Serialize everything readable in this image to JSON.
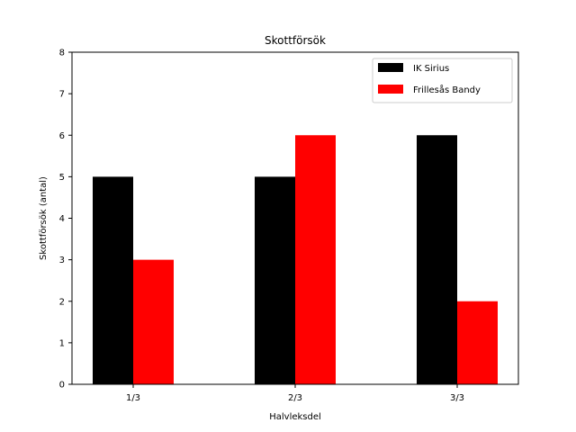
{
  "chart_data": {
    "type": "bar",
    "title": "Skottförsök",
    "xlabel": "Halvleksdel",
    "ylabel": "Skottförsök (antal)",
    "categories": [
      "1/3",
      "2/3",
      "3/3"
    ],
    "series": [
      {
        "name": "IK Sirius",
        "color": "#000000",
        "values": [
          5,
          5,
          6
        ]
      },
      {
        "name": "Frillesås Bandy",
        "color": "#ff0000",
        "values": [
          3,
          6,
          2
        ]
      }
    ],
    "ylim": [
      0,
      8
    ],
    "yticks": [
      0,
      1,
      2,
      3,
      4,
      5,
      6,
      7,
      8
    ],
    "grid": false,
    "legend_position": "top-right"
  }
}
